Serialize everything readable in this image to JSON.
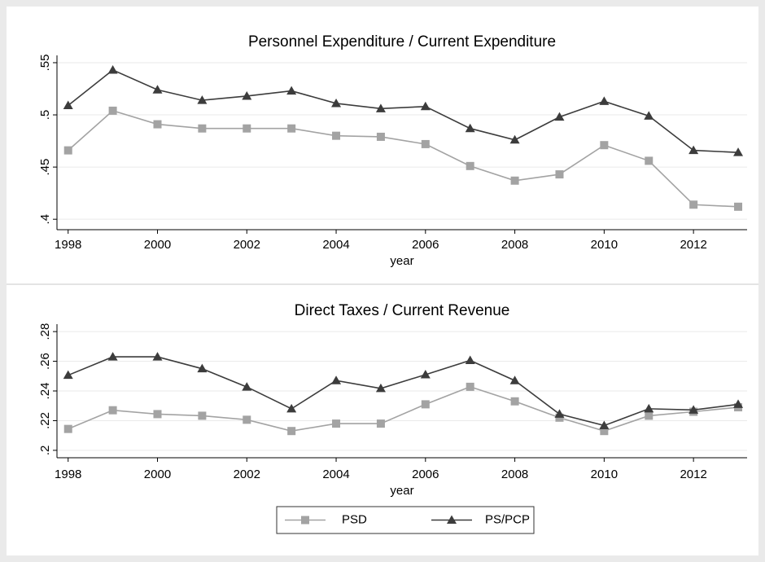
{
  "chart_data": [
    {
      "type": "line",
      "title": "Personnel Expenditure / Current Expenditure",
      "xlabel": "year",
      "x": [
        1998,
        1999,
        2000,
        2001,
        2002,
        2003,
        2004,
        2005,
        2006,
        2007,
        2008,
        2009,
        2010,
        2011,
        2012,
        2013
      ],
      "xlim": [
        1997.75,
        2013.2
      ],
      "xticks": [
        1998,
        2000,
        2002,
        2004,
        2006,
        2008,
        2010,
        2012
      ],
      "ylim": [
        0.39,
        0.557
      ],
      "yticks": [
        {
          "value": 0.4,
          "label": ".4"
        },
        {
          "value": 0.45,
          "label": ".45"
        },
        {
          "value": 0.5,
          "label": ".5"
        },
        {
          "value": 0.55,
          "label": ".55"
        }
      ],
      "grid": true,
      "series": [
        {
          "name": "PSD",
          "color": "#a3a3a3",
          "marker": "square",
          "values": [
            0.466,
            0.504,
            0.491,
            0.487,
            0.487,
            0.487,
            0.48,
            0.479,
            0.472,
            0.451,
            0.437,
            0.443,
            0.471,
            0.456,
            0.414,
            0.412
          ]
        },
        {
          "name": "PS/PCP",
          "color": "#3c3c3c",
          "marker": "triangle",
          "values": [
            0.509,
            0.543,
            0.524,
            0.514,
            0.518,
            0.523,
            0.511,
            0.506,
            0.508,
            0.487,
            0.476,
            0.498,
            0.513,
            0.499,
            0.466,
            0.464
          ]
        }
      ]
    },
    {
      "type": "line",
      "title": "Direct Taxes / Current Revenue",
      "xlabel": "year",
      "x": [
        1998,
        1999,
        2000,
        2001,
        2002,
        2003,
        2004,
        2005,
        2006,
        2007,
        2008,
        2009,
        2010,
        2011,
        2012,
        2013
      ],
      "xlim": [
        1997.75,
        2013.2
      ],
      "xticks": [
        1998,
        2000,
        2002,
        2004,
        2006,
        2008,
        2010,
        2012
      ],
      "ylim": [
        0.195,
        0.285
      ],
      "yticks": [
        {
          "value": 0.2,
          "label": ".2"
        },
        {
          "value": 0.22,
          "label": ".22"
        },
        {
          "value": 0.24,
          "label": ".24"
        },
        {
          "value": 0.26,
          "label": ".26"
        },
        {
          "value": 0.28,
          "label": ".28"
        }
      ],
      "grid": true,
      "series": [
        {
          "color": "#a3a3a3",
          "marker": "square",
          "values": [
            0.2144,
            0.227,
            0.2244,
            0.2233,
            0.2206,
            0.213,
            0.218,
            0.218,
            0.231,
            0.2428,
            0.233,
            0.222,
            0.213,
            0.2233,
            0.226,
            0.229
          ]
        },
        {
          "color": "#3c3c3c",
          "marker": "triangle",
          "values": [
            0.2506,
            0.263,
            0.263,
            0.255,
            0.2427,
            0.228,
            0.247,
            0.2417,
            0.251,
            0.2606,
            0.247,
            0.2244,
            0.2167,
            0.228,
            0.2272,
            0.231
          ]
        }
      ]
    }
  ]
}
